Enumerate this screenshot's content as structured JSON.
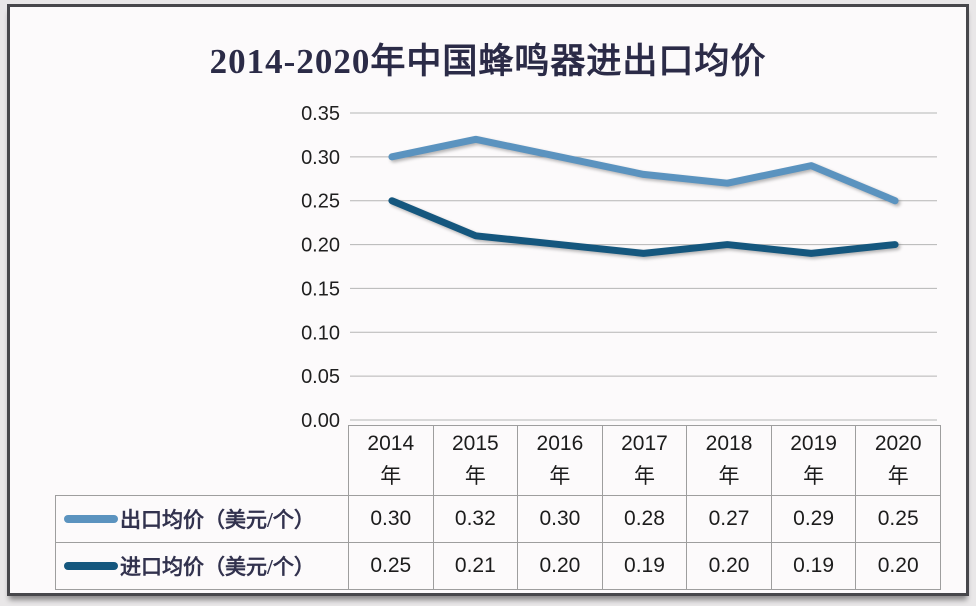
{
  "page": {
    "title": "2014-2020年中国蜂鸣器进出口均价"
  },
  "chart_data": {
    "type": "line",
    "title": "2014-2020年中国蜂鸣器进出口均价",
    "categories": [
      "2014",
      "2015",
      "2016",
      "2017",
      "2018",
      "2019",
      "2020"
    ],
    "category_unit": "年",
    "series": [
      {
        "name": "出口均价（美元/个）",
        "values": [
          0.3,
          0.32,
          0.3,
          0.28,
          0.27,
          0.29,
          0.25
        ],
        "color": "#5b93bf"
      },
      {
        "name": "进口均价（美元/个）",
        "values": [
          0.25,
          0.21,
          0.2,
          0.19,
          0.2,
          0.19,
          0.2
        ],
        "color": "#15577e"
      }
    ],
    "ylim": [
      0,
      0.35
    ],
    "y_tick_step": 0.05,
    "y_ticks": [
      "0.35",
      "0.30",
      "0.25",
      "0.20",
      "0.15",
      "0.10",
      "0.05",
      "0.00"
    ],
    "grid": true,
    "legend_position": "table-left-column",
    "value_decimals": 2
  },
  "colors": {
    "frame_border": "#47474b",
    "background": "#fcfafb",
    "gridline": "#b5b5b5",
    "table_border": "#9e9e9e",
    "title_text": "#2b2b47",
    "export_line": "#5b93bf",
    "import_line": "#15577e"
  }
}
